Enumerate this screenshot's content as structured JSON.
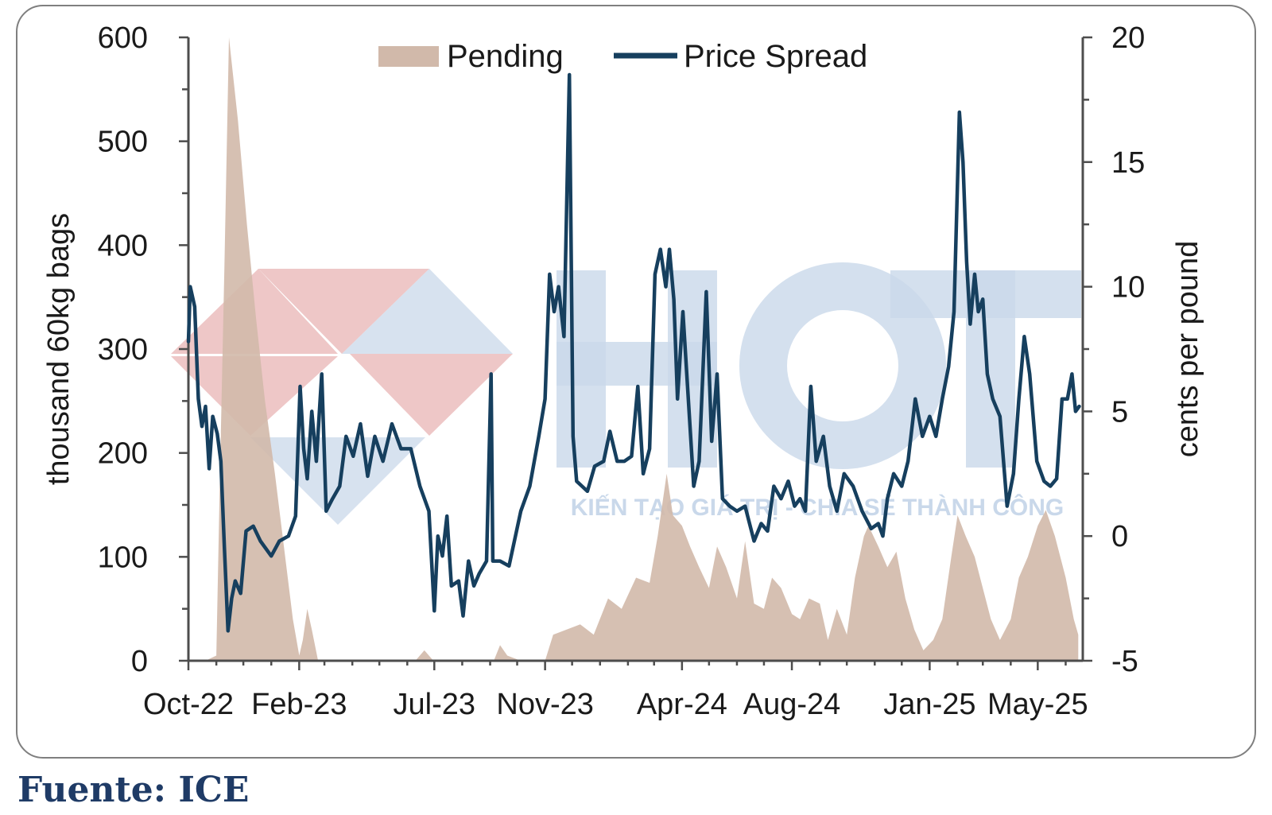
{
  "source": "Fuente: ICE",
  "watermark": {
    "text": "HCT",
    "tagline": "KIẾN TẠO GIÁ TRỊ - CHIA SẺ THÀNH CÔNG",
    "colors": {
      "red": "#e8b4b4",
      "blue": "#c9d8ea"
    }
  },
  "colors": {
    "pending": "#d1b9aa",
    "spread": "#163f5e",
    "axis": "#4d4d4d"
  },
  "chart_data": {
    "type": "area+line",
    "xlabel": "",
    "x_ticks": [
      "Oct-22",
      "Feb-23",
      "Jul-23",
      "Nov-23",
      "Apr-24",
      "Aug-24",
      "Jan-25",
      "May-25"
    ],
    "x_range": [
      "2022-10",
      "2025-06"
    ],
    "left_axis": {
      "label": "thousand 60kg bags",
      "range": [
        0,
        600
      ],
      "ticks": [
        0,
        100,
        200,
        300,
        400,
        500,
        600
      ]
    },
    "right_axis": {
      "label": "cents per pound",
      "range": [
        -5,
        20
      ],
      "ticks": [
        -5,
        0,
        5,
        10,
        15,
        20
      ]
    },
    "legend": {
      "position": "top",
      "entries": [
        "Pending",
        "Price Spread"
      ]
    },
    "grid": false,
    "series": [
      {
        "name": "Pending",
        "type": "area",
        "axis": "left",
        "points": [
          [
            "2022-10-01",
            0
          ],
          [
            "2022-10-20",
            0
          ],
          [
            "2022-11-01",
            5
          ],
          [
            "2022-11-05",
            180
          ],
          [
            "2022-11-10",
            380
          ],
          [
            "2022-11-15",
            600
          ],
          [
            "2022-11-25",
            520
          ],
          [
            "2022-12-05",
            420
          ],
          [
            "2022-12-15",
            330
          ],
          [
            "2022-12-25",
            250
          ],
          [
            "2023-01-05",
            180
          ],
          [
            "2023-01-15",
            110
          ],
          [
            "2023-01-25",
            40
          ],
          [
            "2023-02-01",
            5
          ],
          [
            "2023-02-05",
            20
          ],
          [
            "2023-02-10",
            50
          ],
          [
            "2023-02-15",
            30
          ],
          [
            "2023-02-22",
            0
          ],
          [
            "2023-06-10",
            0
          ],
          [
            "2023-06-20",
            10
          ],
          [
            "2023-06-30",
            0
          ],
          [
            "2023-09-05",
            0
          ],
          [
            "2023-09-12",
            15
          ],
          [
            "2023-09-20",
            5
          ],
          [
            "2023-10-05",
            0
          ],
          [
            "2023-11-01",
            0
          ],
          [
            "2023-11-10",
            25
          ],
          [
            "2023-11-25",
            30
          ],
          [
            "2023-12-10",
            35
          ],
          [
            "2023-12-25",
            25
          ],
          [
            "2024-01-10",
            60
          ],
          [
            "2024-01-25",
            50
          ],
          [
            "2024-02-10",
            80
          ],
          [
            "2024-02-25",
            75
          ],
          [
            "2024-03-05",
            120
          ],
          [
            "2024-03-15",
            180
          ],
          [
            "2024-03-22",
            140
          ],
          [
            "2024-04-01",
            130
          ],
          [
            "2024-04-10",
            110
          ],
          [
            "2024-04-20",
            90
          ],
          [
            "2024-05-01",
            70
          ],
          [
            "2024-05-10",
            110
          ],
          [
            "2024-05-20",
            90
          ],
          [
            "2024-06-01",
            60
          ],
          [
            "2024-06-10",
            115
          ],
          [
            "2024-06-20",
            55
          ],
          [
            "2024-07-01",
            50
          ],
          [
            "2024-07-10",
            80
          ],
          [
            "2024-07-20",
            70
          ],
          [
            "2024-08-01",
            45
          ],
          [
            "2024-08-10",
            40
          ],
          [
            "2024-08-20",
            60
          ],
          [
            "2024-09-01",
            55
          ],
          [
            "2024-09-10",
            20
          ],
          [
            "2024-09-20",
            50
          ],
          [
            "2024-10-01",
            25
          ],
          [
            "2024-10-10",
            80
          ],
          [
            "2024-10-20",
            120
          ],
          [
            "2024-10-25",
            130
          ],
          [
            "2024-11-05",
            110
          ],
          [
            "2024-11-15",
            90
          ],
          [
            "2024-11-25",
            105
          ],
          [
            "2024-12-05",
            60
          ],
          [
            "2024-12-15",
            30
          ],
          [
            "2024-12-25",
            10
          ],
          [
            "2025-01-05",
            20
          ],
          [
            "2025-01-15",
            40
          ],
          [
            "2025-01-25",
            100
          ],
          [
            "2025-02-01",
            140
          ],
          [
            "2025-02-10",
            120
          ],
          [
            "2025-02-20",
            100
          ],
          [
            "2025-03-01",
            70
          ],
          [
            "2025-03-10",
            40
          ],
          [
            "2025-03-20",
            20
          ],
          [
            "2025-04-01",
            40
          ],
          [
            "2025-04-10",
            80
          ],
          [
            "2025-04-20",
            100
          ],
          [
            "2025-05-01",
            130
          ],
          [
            "2025-05-10",
            145
          ],
          [
            "2025-05-20",
            120
          ],
          [
            "2025-06-01",
            80
          ],
          [
            "2025-06-10",
            40
          ],
          [
            "2025-06-15",
            25
          ]
        ]
      },
      {
        "name": "Price Spread",
        "type": "line",
        "axis": "right",
        "points": [
          [
            "2022-10-01",
            7.8
          ],
          [
            "2022-10-03",
            10.0
          ],
          [
            "2022-10-08",
            9.2
          ],
          [
            "2022-10-12",
            5.5
          ],
          [
            "2022-10-16",
            4.4
          ],
          [
            "2022-10-20",
            5.2
          ],
          [
            "2022-10-24",
            2.7
          ],
          [
            "2022-10-28",
            4.8
          ],
          [
            "2022-11-02",
            4.1
          ],
          [
            "2022-11-06",
            3.0
          ],
          [
            "2022-11-10",
            -0.5
          ],
          [
            "2022-11-14",
            -3.8
          ],
          [
            "2022-11-18",
            -2.5
          ],
          [
            "2022-11-22",
            -1.8
          ],
          [
            "2022-11-28",
            -2.3
          ],
          [
            "2022-12-04",
            0.2
          ],
          [
            "2022-12-12",
            0.4
          ],
          [
            "2022-12-20",
            -0.2
          ],
          [
            "2023-01-01",
            -0.8
          ],
          [
            "2023-01-10",
            -0.2
          ],
          [
            "2023-01-20",
            0.0
          ],
          [
            "2023-01-28",
            0.8
          ],
          [
            "2023-02-02",
            6.0
          ],
          [
            "2023-02-06",
            3.5
          ],
          [
            "2023-02-10",
            2.3
          ],
          [
            "2023-02-15",
            5.0
          ],
          [
            "2023-02-20",
            3.0
          ],
          [
            "2023-02-26",
            6.5
          ],
          [
            "2023-03-03",
            1.0
          ],
          [
            "2023-03-10",
            1.5
          ],
          [
            "2023-03-18",
            2.0
          ],
          [
            "2023-03-25",
            4.0
          ],
          [
            "2023-04-02",
            3.2
          ],
          [
            "2023-04-10",
            4.5
          ],
          [
            "2023-04-18",
            2.4
          ],
          [
            "2023-04-26",
            4.0
          ],
          [
            "2023-05-05",
            3.0
          ],
          [
            "2023-05-15",
            4.5
          ],
          [
            "2023-05-25",
            3.5
          ],
          [
            "2023-06-05",
            3.5
          ],
          [
            "2023-06-15",
            2.0
          ],
          [
            "2023-06-25",
            1.0
          ],
          [
            "2023-07-01",
            -3.0
          ],
          [
            "2023-07-05",
            0.0
          ],
          [
            "2023-07-10",
            -0.8
          ],
          [
            "2023-07-15",
            0.8
          ],
          [
            "2023-07-20",
            -2.0
          ],
          [
            "2023-07-28",
            -1.8
          ],
          [
            "2023-08-02",
            -3.2
          ],
          [
            "2023-08-08",
            -1.0
          ],
          [
            "2023-08-14",
            -2.0
          ],
          [
            "2023-08-20",
            -1.5
          ],
          [
            "2023-08-28",
            -1.0
          ],
          [
            "2023-09-02",
            6.5
          ],
          [
            "2023-09-04",
            -1.0
          ],
          [
            "2023-09-12",
            -1.0
          ],
          [
            "2023-09-22",
            -1.2
          ],
          [
            "2023-10-05",
            1.0
          ],
          [
            "2023-10-15",
            2.0
          ],
          [
            "2023-10-25",
            4.0
          ],
          [
            "2023-11-01",
            5.5
          ],
          [
            "2023-11-06",
            10.5
          ],
          [
            "2023-11-11",
            9.0
          ],
          [
            "2023-11-16",
            10.0
          ],
          [
            "2023-11-22",
            8.0
          ],
          [
            "2023-11-28",
            18.5
          ],
          [
            "2023-12-02",
            4.0
          ],
          [
            "2023-12-06",
            2.2
          ],
          [
            "2023-12-12",
            2.0
          ],
          [
            "2023-12-18",
            1.8
          ],
          [
            "2023-12-26",
            2.8
          ],
          [
            "2024-01-05",
            3.0
          ],
          [
            "2024-01-12",
            4.2
          ],
          [
            "2024-01-20",
            3.0
          ],
          [
            "2024-01-28",
            3.0
          ],
          [
            "2024-02-05",
            3.2
          ],
          [
            "2024-02-12",
            6.0
          ],
          [
            "2024-02-18",
            2.5
          ],
          [
            "2024-02-25",
            3.5
          ],
          [
            "2024-03-02",
            10.5
          ],
          [
            "2024-03-08",
            11.5
          ],
          [
            "2024-03-14",
            10.0
          ],
          [
            "2024-03-18",
            11.5
          ],
          [
            "2024-03-23",
            9.5
          ],
          [
            "2024-03-27",
            5.5
          ],
          [
            "2024-04-02",
            9.0
          ],
          [
            "2024-04-08",
            5.5
          ],
          [
            "2024-04-14",
            2.0
          ],
          [
            "2024-04-20",
            3.0
          ],
          [
            "2024-04-28",
            9.8
          ],
          [
            "2024-05-04",
            3.8
          ],
          [
            "2024-05-10",
            6.5
          ],
          [
            "2024-05-16",
            1.5
          ],
          [
            "2024-05-24",
            1.2
          ],
          [
            "2024-06-01",
            1.0
          ],
          [
            "2024-06-10",
            1.2
          ],
          [
            "2024-06-20",
            -0.2
          ],
          [
            "2024-06-28",
            0.5
          ],
          [
            "2024-07-05",
            0.2
          ],
          [
            "2024-07-12",
            2.0
          ],
          [
            "2024-07-20",
            1.5
          ],
          [
            "2024-07-28",
            2.2
          ],
          [
            "2024-08-04",
            1.2
          ],
          [
            "2024-08-10",
            1.5
          ],
          [
            "2024-08-16",
            1.0
          ],
          [
            "2024-08-22",
            6.0
          ],
          [
            "2024-08-28",
            3.0
          ],
          [
            "2024-09-05",
            4.0
          ],
          [
            "2024-09-12",
            2.0
          ],
          [
            "2024-09-20",
            1.0
          ],
          [
            "2024-09-28",
            2.5
          ],
          [
            "2024-10-08",
            2.0
          ],
          [
            "2024-10-18",
            1.0
          ],
          [
            "2024-10-28",
            0.3
          ],
          [
            "2024-11-05",
            0.5
          ],
          [
            "2024-11-10",
            0.0
          ],
          [
            "2024-11-15",
            1.5
          ],
          [
            "2024-11-22",
            2.5
          ],
          [
            "2024-12-01",
            2.0
          ],
          [
            "2024-12-08",
            3.0
          ],
          [
            "2024-12-16",
            5.5
          ],
          [
            "2024-12-24",
            4.0
          ],
          [
            "2025-01-01",
            4.8
          ],
          [
            "2025-01-08",
            4.0
          ],
          [
            "2025-01-15",
            5.5
          ],
          [
            "2025-01-22",
            6.8
          ],
          [
            "2025-01-28",
            9.0
          ],
          [
            "2025-02-03",
            17.0
          ],
          [
            "2025-02-07",
            15.0
          ],
          [
            "2025-02-11",
            11.0
          ],
          [
            "2025-02-15",
            8.5
          ],
          [
            "2025-02-20",
            10.5
          ],
          [
            "2025-02-24",
            9.0
          ],
          [
            "2025-03-01",
            9.5
          ],
          [
            "2025-03-06",
            6.5
          ],
          [
            "2025-03-12",
            5.5
          ],
          [
            "2025-03-20",
            4.8
          ],
          [
            "2025-03-28",
            1.2
          ],
          [
            "2025-04-04",
            2.5
          ],
          [
            "2025-04-10",
            5.5
          ],
          [
            "2025-04-16",
            8.0
          ],
          [
            "2025-04-22",
            6.5
          ],
          [
            "2025-04-30",
            3.0
          ],
          [
            "2025-05-08",
            2.2
          ],
          [
            "2025-05-15",
            2.0
          ],
          [
            "2025-05-22",
            2.3
          ],
          [
            "2025-05-28",
            5.5
          ],
          [
            "2025-06-03",
            5.5
          ],
          [
            "2025-06-08",
            6.5
          ],
          [
            "2025-06-12",
            5.0
          ],
          [
            "2025-06-16",
            5.2
          ]
        ]
      }
    ]
  }
}
